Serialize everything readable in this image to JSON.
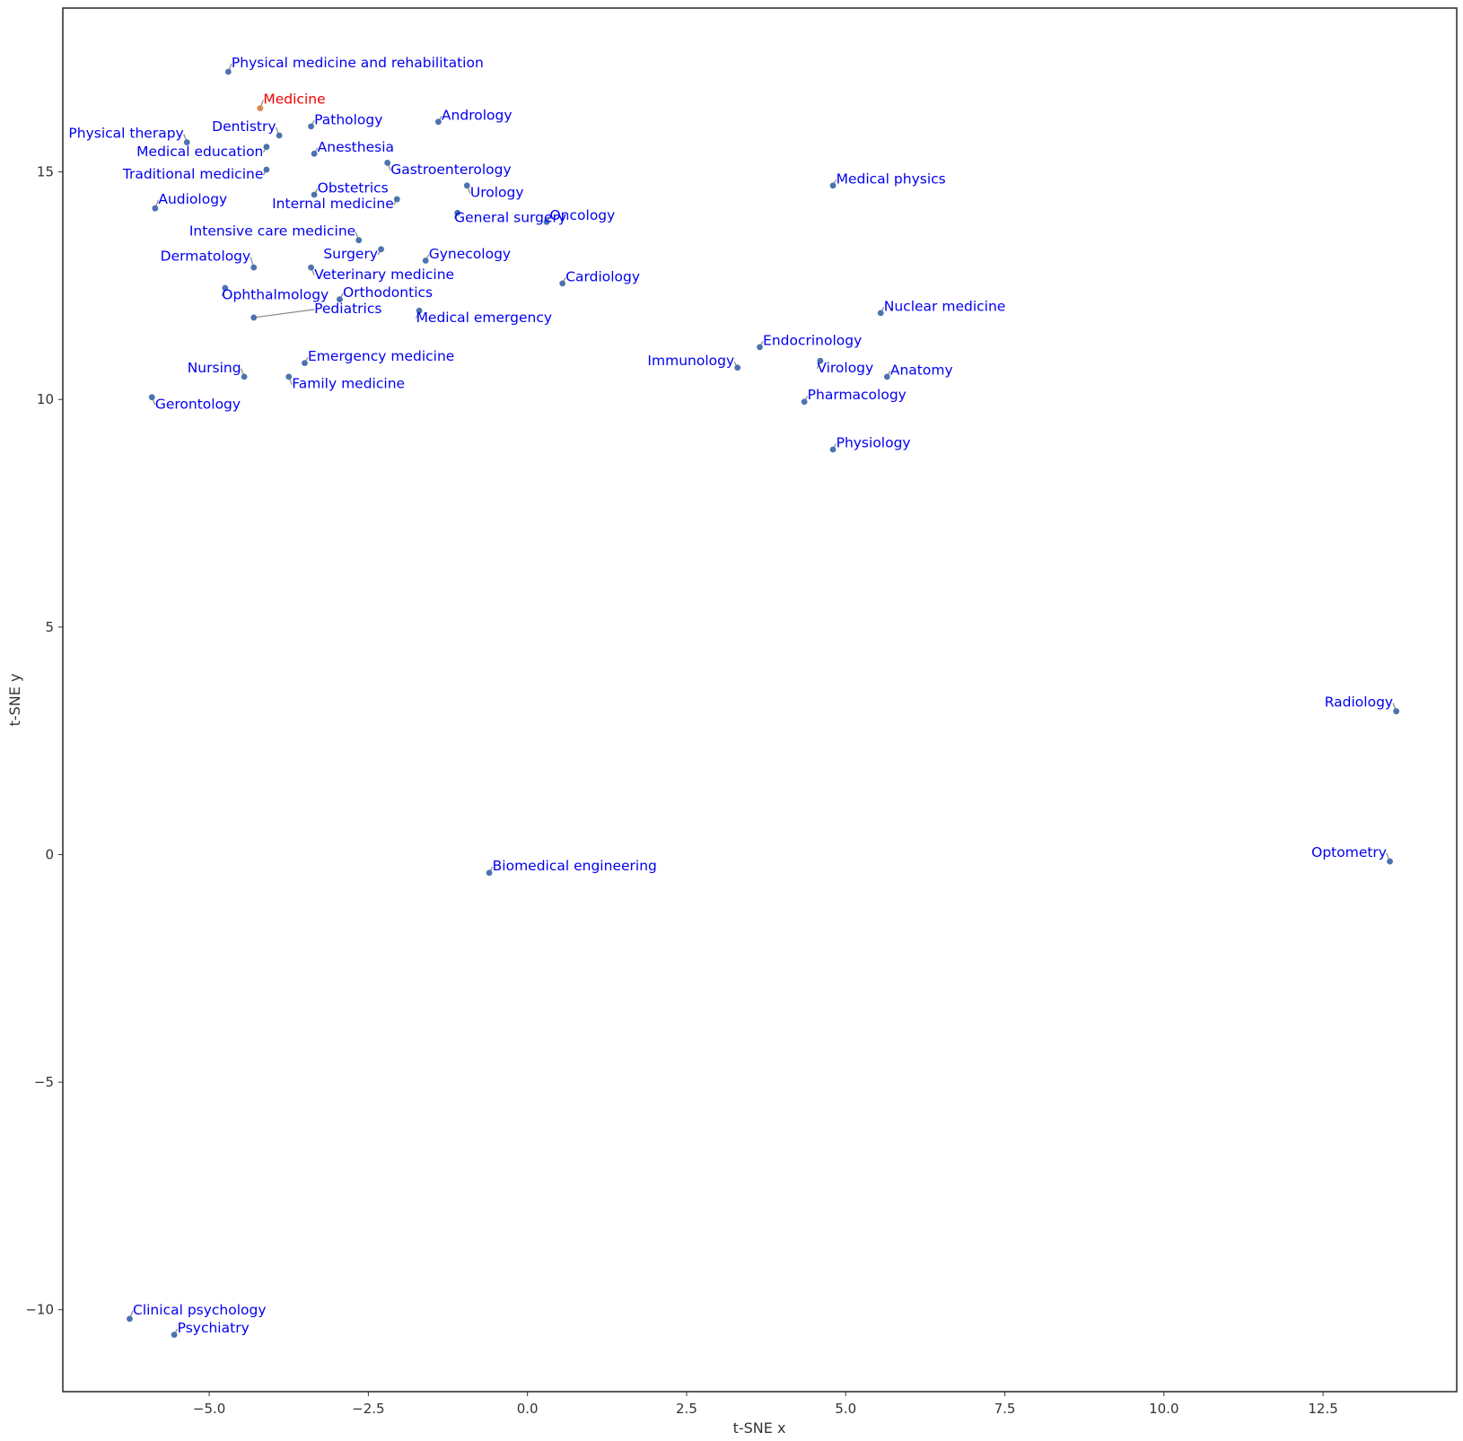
{
  "chart_data": {
    "type": "scatter",
    "title": "",
    "xlabel": "t-SNE x",
    "ylabel": "t-SNE y",
    "xlim": [
      -7.3,
      14.6
    ],
    "ylim": [
      -11.8,
      18.6
    ],
    "xticks": [
      -5.0,
      -2.5,
      0.0,
      2.5,
      5.0,
      7.5,
      10.0,
      12.5
    ],
    "xtick_labels": [
      "−5.0",
      "−2.5",
      "0.0",
      "2.5",
      "5.0",
      "7.5",
      "10.0",
      "12.5"
    ],
    "yticks": [
      -10,
      -5,
      0,
      5,
      10,
      15
    ],
    "ytick_labels": [
      "−10",
      "−5",
      "0",
      "5",
      "10",
      "15"
    ],
    "grid": false,
    "colors": {
      "point": "#4c72b0",
      "highlight_point": "#dd8452",
      "label": "#0000ee",
      "highlight_label": "#ee0000",
      "connector": "#888888",
      "axis": "#333333"
    },
    "points": [
      {
        "label": "Physical medicine and rehabilitation",
        "x": -4.7,
        "y": 17.2,
        "lx": -4.65,
        "ly": 17.3
      },
      {
        "label": "Medicine",
        "x": -4.2,
        "y": 16.4,
        "lx": -4.15,
        "ly": 16.5,
        "highlight": true
      },
      {
        "label": "Pathology",
        "x": -3.4,
        "y": 16.0,
        "lx": -3.35,
        "ly": 16.05
      },
      {
        "label": "Andrology",
        "x": -1.4,
        "y": 16.1,
        "lx": -1.35,
        "ly": 16.15
      },
      {
        "label": "Dentistry",
        "x": -3.9,
        "y": 15.8,
        "lx": -3.95,
        "ly": 15.9,
        "anchor": "end"
      },
      {
        "label": "Physical therapy",
        "x": -5.35,
        "y": 15.65,
        "lx": -5.4,
        "ly": 15.75,
        "anchor": "end"
      },
      {
        "label": "Medical education",
        "x": -4.1,
        "y": 15.55,
        "lx": -4.15,
        "ly": 15.35,
        "anchor": "end"
      },
      {
        "label": "Anesthesia",
        "x": -3.35,
        "y": 15.4,
        "lx": -3.3,
        "ly": 15.45
      },
      {
        "label": "Gastroenterology",
        "x": -2.2,
        "y": 15.2,
        "lx": -2.15,
        "ly": 14.95
      },
      {
        "label": "Traditional medicine",
        "x": -4.1,
        "y": 15.05,
        "lx": -4.15,
        "ly": 14.85,
        "anchor": "end"
      },
      {
        "label": "Medical physics",
        "x": 4.8,
        "y": 14.7,
        "lx": 4.85,
        "ly": 14.75
      },
      {
        "label": "Urology",
        "x": -0.95,
        "y": 14.7,
        "lx": -0.9,
        "ly": 14.45
      },
      {
        "label": "Obstetrics",
        "x": -3.35,
        "y": 14.5,
        "lx": -3.3,
        "ly": 14.55
      },
      {
        "label": "Internal medicine",
        "x": -2.05,
        "y": 14.4,
        "lx": -2.1,
        "ly": 14.2,
        "anchor": "end"
      },
      {
        "label": "Audiology",
        "x": -5.85,
        "y": 14.2,
        "lx": -5.8,
        "ly": 14.3
      },
      {
        "label": "General surgery",
        "x": -1.1,
        "y": 14.1,
        "lx": -1.15,
        "ly": 13.9
      },
      {
        "label": "Oncology",
        "x": 0.3,
        "y": 13.9,
        "lx": 0.35,
        "ly": 13.95
      },
      {
        "label": "Intensive care medicine",
        "x": -2.65,
        "y": 13.5,
        "lx": -2.7,
        "ly": 13.6,
        "anchor": "end"
      },
      {
        "label": "Surgery",
        "x": -2.3,
        "y": 13.3,
        "lx": -2.35,
        "ly": 13.1,
        "anchor": "end"
      },
      {
        "label": "Gynecology",
        "x": -1.6,
        "y": 13.05,
        "lx": -1.55,
        "ly": 13.1
      },
      {
        "label": "Dermatology",
        "x": -4.3,
        "y": 12.9,
        "lx": -4.35,
        "ly": 13.05,
        "anchor": "end"
      },
      {
        "label": "Veterinary medicine",
        "x": -3.4,
        "y": 12.9,
        "lx": -3.35,
        "ly": 12.65
      },
      {
        "label": "Cardiology",
        "x": 0.55,
        "y": 12.55,
        "lx": 0.6,
        "ly": 12.6
      },
      {
        "label": "Ophthalmology",
        "x": -4.75,
        "y": 12.45,
        "lx": -4.8,
        "ly": 12.2
      },
      {
        "label": "Orthodontics",
        "x": -2.95,
        "y": 12.2,
        "lx": -2.9,
        "ly": 12.25
      },
      {
        "label": "Medical emergency",
        "x": -1.7,
        "y": 11.95,
        "lx": -1.75,
        "ly": 11.7
      },
      {
        "label": "Nuclear medicine",
        "x": 5.55,
        "y": 11.9,
        "lx": 5.6,
        "ly": 11.95
      },
      {
        "label": "Pediatrics",
        "x": -4.3,
        "y": 11.8,
        "lx": -3.35,
        "ly": 11.9
      },
      {
        "label": "Endocrinology",
        "x": 3.65,
        "y": 11.15,
        "lx": 3.7,
        "ly": 11.2
      },
      {
        "label": "Virology",
        "x": 4.6,
        "y": 10.85,
        "lx": 4.55,
        "ly": 10.6
      },
      {
        "label": "Emergency medicine",
        "x": -3.5,
        "y": 10.8,
        "lx": -3.45,
        "ly": 10.85
      },
      {
        "label": "Immunology",
        "x": 3.3,
        "y": 10.7,
        "lx": 3.25,
        "ly": 10.75,
        "anchor": "end"
      },
      {
        "label": "Nursing",
        "x": -4.45,
        "y": 10.5,
        "lx": -4.5,
        "ly": 10.6,
        "anchor": "end"
      },
      {
        "label": "Anatomy",
        "x": 5.65,
        "y": 10.5,
        "lx": 5.7,
        "ly": 10.55
      },
      {
        "label": "Family medicine",
        "x": -3.75,
        "y": 10.5,
        "lx": -3.7,
        "ly": 10.25
      },
      {
        "label": "Gerontology",
        "x": -5.9,
        "y": 10.05,
        "lx": -5.85,
        "ly": 9.8
      },
      {
        "label": "Pharmacology",
        "x": 4.35,
        "y": 9.95,
        "lx": 4.4,
        "ly": 10.0
      },
      {
        "label": "Physiology",
        "x": 4.8,
        "y": 8.9,
        "lx": 4.85,
        "ly": 8.95
      },
      {
        "label": "Radiology",
        "x": 13.65,
        "y": 3.15,
        "lx": 13.6,
        "ly": 3.25,
        "anchor": "end"
      },
      {
        "label": "Optometry",
        "x": 13.55,
        "y": -0.15,
        "lx": 13.5,
        "ly": -0.05,
        "anchor": "end"
      },
      {
        "label": "Biomedical engineering",
        "x": -0.6,
        "y": -0.4,
        "lx": -0.55,
        "ly": -0.35
      },
      {
        "label": "Clinical psychology",
        "x": -6.25,
        "y": -10.2,
        "lx": -6.2,
        "ly": -10.1
      },
      {
        "label": "Psychiatry",
        "x": -5.55,
        "y": -10.55,
        "lx": -5.5,
        "ly": -10.5
      }
    ]
  }
}
